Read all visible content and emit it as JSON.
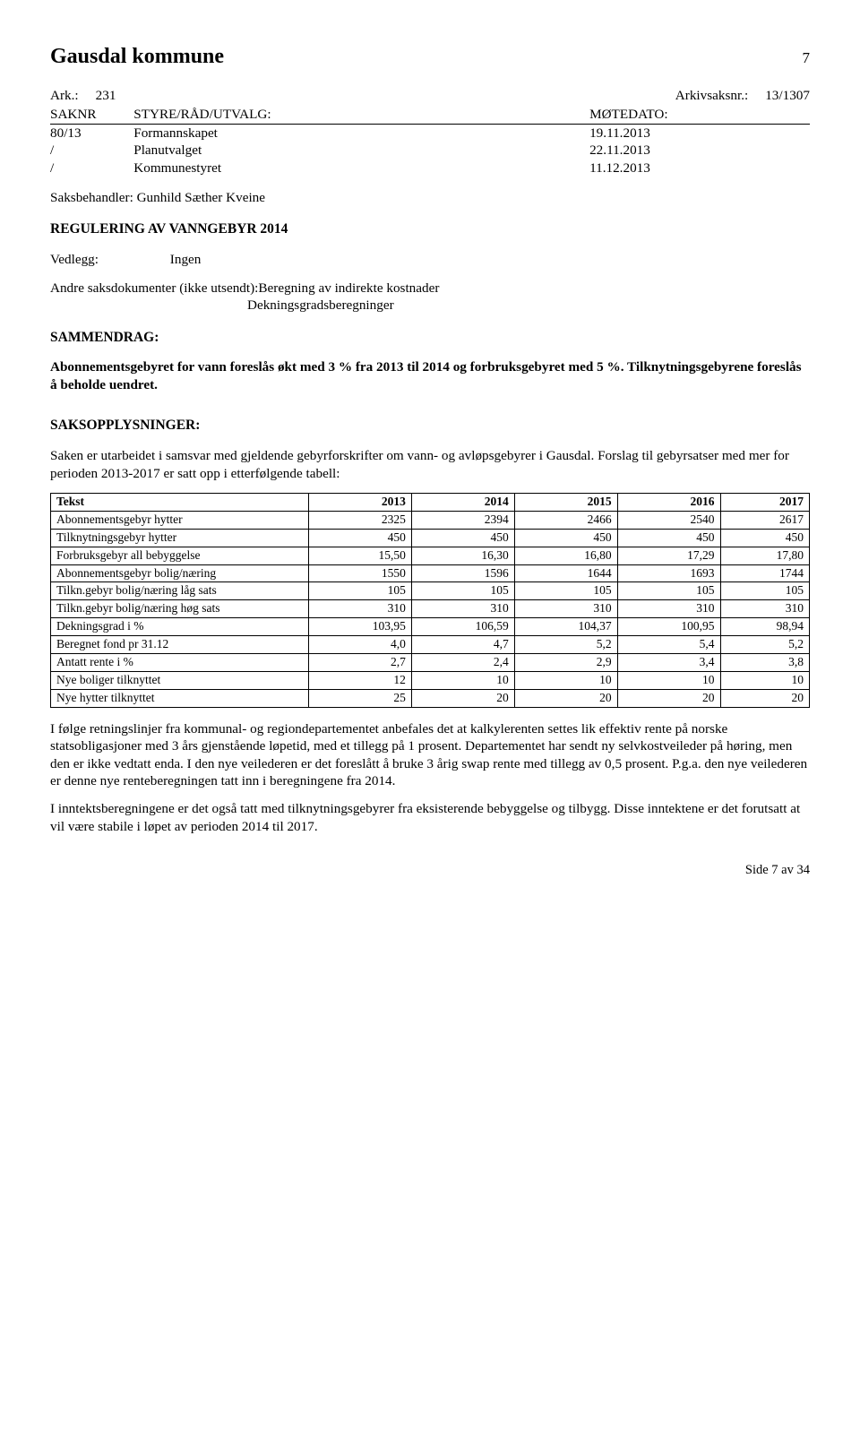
{
  "header": {
    "title": "Gausdal kommune",
    "page_number": "7"
  },
  "ark_line": {
    "left_label": "Ark.:",
    "left_value": "231",
    "right_label": "Arkivsaksnr.:",
    "right_value": "13/1307"
  },
  "meeting": {
    "col_a": "SAKNR",
    "col_b": "STYRE/RÅD/UTVALG:",
    "col_c": "MØTEDATO:",
    "rows": [
      {
        "a": "80/13",
        "b": "Formannskapet",
        "c": "19.11.2013"
      },
      {
        "a": "/",
        "b": "Planutvalget",
        "c": "22.11.2013"
      },
      {
        "a": "/",
        "b": "Kommunestyret",
        "c": "11.12.2013"
      }
    ]
  },
  "saksbehandler": "Saksbehandler: Gunhild Sæther Kveine",
  "doc_title": "REGULERING AV VANNGEBYR 2014",
  "vedlegg": {
    "label": "Vedlegg:",
    "value": "Ingen"
  },
  "andre_saks": {
    "line1": "Andre saksdokumenter (ikke utsendt):Beregning av indirekte kostnader",
    "line2": "Dekningsgradsberegninger"
  },
  "sammendrag": {
    "heading": "SAMMENDRAG:",
    "text": "Abonnementsgebyret for vann foreslås økt med 3 % fra 2013 til 2014 og forbruksgebyret med 5 %. Tilknytningsgebyrene foreslås å beholde uendret."
  },
  "saksoppl": {
    "heading": "SAKSOPPLYSNINGER:",
    "para": "Saken er utarbeidet i samsvar med gjeldende gebyrforskrifter om vann- og avløpsgebyrer i Gausdal. Forslag til gebyrsatser med mer for perioden 2013-2017 er satt opp i etterfølgende tabell:"
  },
  "table": {
    "headers": [
      "Tekst",
      "2013",
      "2014",
      "2015",
      "2016",
      "2017"
    ],
    "rows": [
      [
        "Abonnementsgebyr hytter",
        "2325",
        "2394",
        "2466",
        "2540",
        "2617"
      ],
      [
        "Tilknytningsgebyr hytter",
        "450",
        "450",
        "450",
        "450",
        "450"
      ],
      [
        "Forbruksgebyr all bebyggelse",
        "15,50",
        "16,30",
        "16,80",
        "17,29",
        "17,80"
      ],
      [
        "Abonnementsgebyr bolig/næring",
        "1550",
        "1596",
        "1644",
        "1693",
        "1744"
      ],
      [
        "Tilkn.gebyr bolig/næring låg sats",
        "105",
        "105",
        "105",
        "105",
        "105"
      ],
      [
        "Tilkn.gebyr bolig/næring høg sats",
        "310",
        "310",
        "310",
        "310",
        "310"
      ],
      [
        "Dekningsgrad i %",
        "103,95",
        "106,59",
        "104,37",
        "100,95",
        "98,94"
      ],
      [
        "Beregnet fond pr 31.12",
        "4,0",
        "4,7",
        "5,2",
        "5,4",
        "5,2"
      ],
      [
        "Antatt rente i %",
        "2,7",
        "2,4",
        "2,9",
        "3,4",
        "3,8"
      ],
      [
        "Nye boliger tilknyttet",
        "12",
        "10",
        "10",
        "10",
        "10"
      ],
      [
        "Nye hytter tilknyttet",
        "25",
        "20",
        "20",
        "20",
        "20"
      ]
    ]
  },
  "para_after_1": "I følge retningslinjer fra kommunal- og regiondepartementet anbefales det at kalkylerenten settes lik effektiv rente på norske statsobligasjoner med 3 års gjenstående løpetid, med et tillegg på 1 prosent. Departementet har sendt ny selvkostveileder på høring, men den er ikke vedtatt enda. I den nye veilederen er det foreslått å bruke 3 årig swap rente med tillegg av 0,5 prosent. P.g.a. den nye veilederen er denne nye renteberegningen tatt inn i beregningene fra 2014.",
  "para_after_2": "I inntektsberegningene er det også tatt med tilknytningsgebyrer fra eksisterende bebyggelse og tilbygg. Disse inntektene er det forutsatt at vil være stabile i løpet av perioden 2014 til 2017.",
  "footer": "Side 7 av 34"
}
